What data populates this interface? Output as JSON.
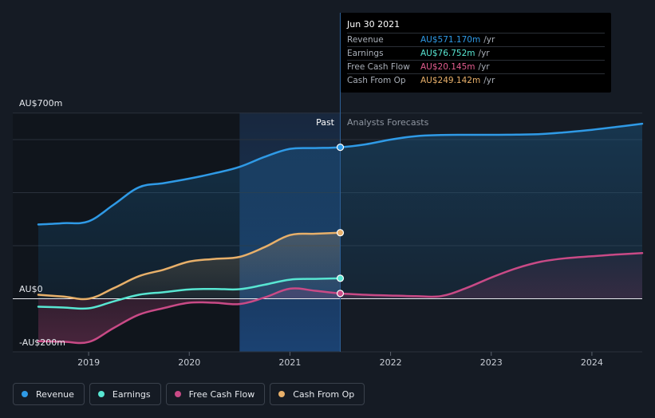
{
  "tooltip": {
    "date": "Jun 30 2021",
    "rows": [
      {
        "label": "Revenue",
        "value": "AU$571.170m",
        "unit": "/yr",
        "color": "#2f9ae6"
      },
      {
        "label": "Earnings",
        "value": "AU$76.752m",
        "unit": "/yr",
        "color": "#58e6d2"
      },
      {
        "label": "Free Cash Flow",
        "value": "AU$20.145m",
        "unit": "/yr",
        "color": "#e35d8f"
      },
      {
        "label": "Cash From Op",
        "value": "AU$249.142m",
        "unit": "/yr",
        "color": "#e8b06a"
      }
    ]
  },
  "legend": [
    {
      "label": "Revenue",
      "color": "#2f9ae6"
    },
    {
      "label": "Earnings",
      "color": "#58e6d2"
    },
    {
      "label": "Free Cash Flow",
      "color": "#c94a86"
    },
    {
      "label": "Cash From Op",
      "color": "#e8b06a"
    }
  ],
  "chart_data": {
    "type": "line",
    "y_top_label": "AU$700m",
    "y_zero_label": "AU$0",
    "y_bottom_label": "-AU$200m",
    "ylim": [
      -200,
      700
    ],
    "xlim": [
      2018.5,
      2024.5
    ],
    "x_ticks": [
      "2019",
      "2020",
      "2021",
      "2022",
      "2023",
      "2024"
    ],
    "past_label": "Past",
    "forecast_label": "Analysts Forecasts",
    "divider_x": 2021.5,
    "highlight_range": [
      2020.5,
      2021.5
    ],
    "grid": true,
    "series": [
      {
        "name": "Revenue",
        "color": "#2f9ae6",
        "x": [
          2018.5,
          2018.75,
          2019,
          2019.25,
          2019.5,
          2019.75,
          2020,
          2020.25,
          2020.5,
          2020.75,
          2021,
          2021.25,
          2021.5,
          2021.75,
          2022,
          2022.25,
          2022.5,
          2022.75,
          2023,
          2023.25,
          2023.5,
          2023.75,
          2024,
          2024.25,
          2024.5
        ],
        "y": [
          280,
          285,
          292,
          355,
          420,
          436,
          453,
          473,
          497,
          535,
          565,
          568,
          571,
          582,
          600,
          613,
          617,
          618,
          618,
          619,
          621,
          628,
          637,
          648,
          660
        ]
      },
      {
        "name": "Earnings",
        "color": "#58e6d2",
        "x": [
          2018.5,
          2018.75,
          2019,
          2019.25,
          2019.5,
          2019.75,
          2020,
          2020.25,
          2020.5,
          2020.75,
          2021,
          2021.25,
          2021.5
        ],
        "y": [
          -30,
          -33,
          -36,
          -10,
          15,
          25,
          35,
          37,
          36,
          53,
          72,
          75,
          77
        ]
      },
      {
        "name": "Free Cash Flow",
        "color": "#c94a86",
        "x": [
          2018.5,
          2018.75,
          2019,
          2019.25,
          2019.5,
          2019.75,
          2020,
          2020.25,
          2020.5,
          2020.75,
          2021,
          2021.25,
          2021.5,
          2021.75,
          2022,
          2022.25,
          2022.5,
          2022.75,
          2023,
          2023.25,
          2023.5,
          2023.75,
          2024,
          2024.25,
          2024.5
        ],
        "y": [
          -160,
          -162,
          -163,
          -110,
          -60,
          -35,
          -15,
          -15,
          -20,
          5,
          38,
          30,
          20,
          15,
          12,
          10,
          10,
          40,
          80,
          115,
          140,
          153,
          160,
          167,
          172
        ]
      },
      {
        "name": "Cash From Op",
        "color": "#e8b06a",
        "x": [
          2018.5,
          2018.75,
          2019,
          2019.25,
          2019.5,
          2019.75,
          2020,
          2020.25,
          2020.5,
          2020.75,
          2021,
          2021.25,
          2021.5
        ],
        "y": [
          15,
          8,
          0,
          40,
          85,
          110,
          140,
          150,
          158,
          195,
          240,
          245,
          249
        ]
      }
    ]
  }
}
